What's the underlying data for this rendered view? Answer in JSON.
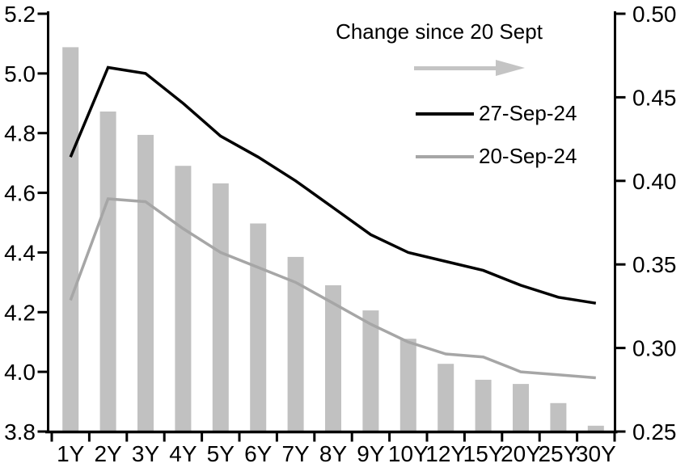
{
  "chart_data": {
    "type": "combo-bar-line-dual-axis",
    "categories": [
      "1Y",
      "2Y",
      "3Y",
      "4Y",
      "5Y",
      "6Y",
      "7Y",
      "8Y",
      "9Y",
      "10Y",
      "12Y",
      "15Y",
      "20Y",
      "25Y",
      "30Y"
    ],
    "series": [
      {
        "name": "Change since 20 Sept",
        "type": "bar",
        "axis": "right",
        "color": "#c1c1c1",
        "values": [
          0.48,
          0.4415,
          0.4275,
          0.409,
          0.3985,
          0.3745,
          0.3545,
          0.3375,
          0.3225,
          0.3055,
          0.2905,
          0.281,
          0.2785,
          0.267,
          0.2535
        ]
      },
      {
        "name": "27-Sep-24",
        "type": "line",
        "axis": "left",
        "color": "#000000",
        "values": [
          4.72,
          5.02,
          5.0,
          4.9,
          4.79,
          4.72,
          4.64,
          4.55,
          4.46,
          4.4,
          4.37,
          4.34,
          4.29,
          4.25,
          4.23
        ]
      },
      {
        "name": "20-Sep-24",
        "type": "line",
        "axis": "left",
        "color": "#a6a6a6",
        "values": [
          4.24,
          4.58,
          4.57,
          4.48,
          4.4,
          4.35,
          4.3,
          4.23,
          4.16,
          4.1,
          4.06,
          4.05,
          4.0,
          3.99,
          3.98
        ]
      }
    ],
    "left_axis": {
      "min": 3.8,
      "max": 5.2,
      "step": 0.2,
      "tick_labels": [
        "5.2",
        "5.0",
        "4.8",
        "4.6",
        "4.4",
        "4.2",
        "4.0",
        "3.8"
      ]
    },
    "right_axis": {
      "min": 0.25,
      "max": 0.5,
      "step": 0.05,
      "tick_labels": [
        "0.50",
        "0.45",
        "0.40",
        "0.35",
        "0.30",
        "0.25"
      ]
    },
    "grid": false,
    "legend_position": "top-center-inside",
    "legend": {
      "arrow_icon": "right-arrow"
    }
  }
}
